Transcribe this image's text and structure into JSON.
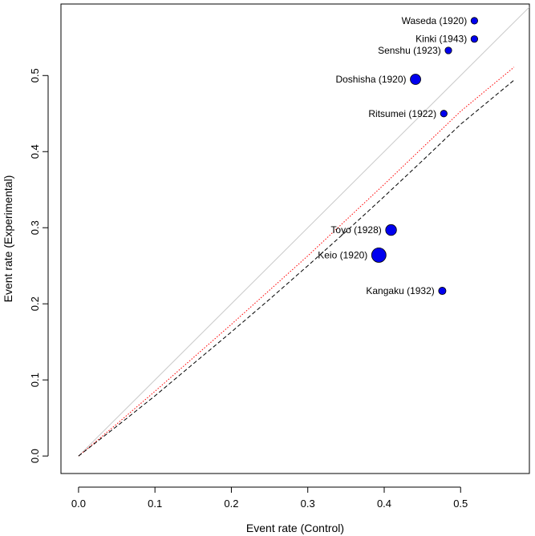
{
  "chart_data": {
    "type": "scatter",
    "title": "",
    "xlabel": "Event rate (Control)",
    "ylabel": "Event rate (Experimental)",
    "xlim": [
      -0.023,
      0.59
    ],
    "ylim": [
      -0.023,
      0.594
    ],
    "xticks": [
      0.0,
      0.1,
      0.2,
      0.3,
      0.4,
      0.5
    ],
    "yticks": [
      0.0,
      0.1,
      0.2,
      0.3,
      0.4,
      0.5
    ],
    "xtick_labels": [
      "0.0",
      "0.1",
      "0.2",
      "0.3",
      "0.4",
      "0.5"
    ],
    "ytick_labels": [
      "0.0",
      "0.1",
      "0.2",
      "0.3",
      "0.4",
      "0.5"
    ],
    "points": [
      {
        "label": "Waseda (1920)",
        "x": 0.518,
        "y": 0.572,
        "size": 1
      },
      {
        "label": "Kinki (1943)",
        "x": 0.518,
        "y": 0.548,
        "size": 1
      },
      {
        "label": "Senshu (1923)",
        "x": 0.484,
        "y": 0.533,
        "size": 1
      },
      {
        "label": "Doshisha (1920)",
        "x": 0.441,
        "y": 0.495,
        "size": 2.4
      },
      {
        "label": "Ritsumei (1922)",
        "x": 0.478,
        "y": 0.45,
        "size": 1
      },
      {
        "label": "Toyo (1928)",
        "x": 0.409,
        "y": 0.297,
        "size": 2.6
      },
      {
        "label": "Keio (1920)",
        "x": 0.393,
        "y": 0.264,
        "size": 4.6
      },
      {
        "label": "Kangaku (1932)",
        "x": 0.476,
        "y": 0.217,
        "size": 1.2
      }
    ],
    "reference_lines": [
      {
        "name": "identity",
        "style": "solid",
        "color": "#c8c8c8",
        "x": [
          0,
          0.59
        ],
        "y": [
          0,
          0.59
        ]
      },
      {
        "name": "fit-red",
        "style": "dotted",
        "color": "#ff0000",
        "x": [
          0,
          0.05,
          0.1,
          0.15,
          0.2,
          0.25,
          0.3,
          0.35,
          0.4,
          0.45,
          0.5,
          0.57
        ],
        "y": [
          0,
          0.042,
          0.085,
          0.129,
          0.173,
          0.218,
          0.263,
          0.31,
          0.357,
          0.405,
          0.453,
          0.511
        ]
      },
      {
        "name": "fit-black",
        "style": "dashed",
        "color": "#000000",
        "x": [
          0,
          0.05,
          0.1,
          0.15,
          0.2,
          0.25,
          0.3,
          0.35,
          0.4,
          0.45,
          0.5,
          0.57
        ],
        "y": [
          0,
          0.039,
          0.079,
          0.121,
          0.163,
          0.206,
          0.25,
          0.295,
          0.341,
          0.388,
          0.436,
          0.494
        ]
      }
    ],
    "colors": {
      "point_fill": "#0000ee",
      "point_stroke": "#000000",
      "frame": "#000000"
    }
  }
}
